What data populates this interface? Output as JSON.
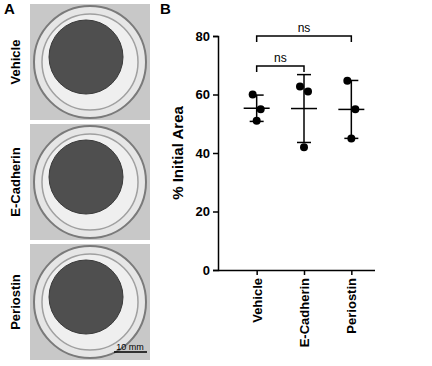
{
  "panel_a": {
    "label": "A",
    "rows": [
      "Vehicle",
      "E-Cadherin",
      "Periostin"
    ],
    "scale_bar": "10 mm"
  },
  "chart_data": {
    "type": "scatter",
    "panel_label": "B",
    "y_label": "% Initial Area",
    "categories": [
      "Vehicle",
      "E-Cadherin",
      "Periostin"
    ],
    "points": [
      [
        60,
        55,
        51
      ],
      [
        62.7,
        61,
        42
      ],
      [
        64.7,
        55,
        45
      ]
    ],
    "means": [
      55.3,
      55.2,
      54.9
    ],
    "errors": [
      4.5,
      11.6,
      9.9
    ],
    "color": "#000000",
    "ylim": [
      0,
      80
    ],
    "yticks": [
      0,
      20,
      40,
      60,
      80
    ],
    "annotations": [
      {
        "text": "ns",
        "from": 0,
        "to": 1
      },
      {
        "text": "ns",
        "from": 0,
        "to": 2
      }
    ]
  }
}
